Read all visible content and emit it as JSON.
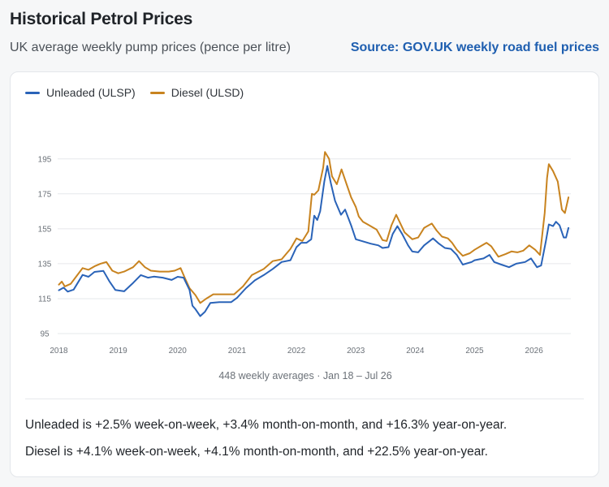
{
  "header": {
    "title": "Historical Petrol Prices",
    "subtitle": "UK average weekly pump prices (pence per litre)",
    "source_link": "Source: GOV.UK weekly road fuel prices"
  },
  "colors": {
    "unleaded": "#2a63b8",
    "diesel": "#c8831f",
    "grid": "#e6e8eb",
    "link": "#1f5fb0"
  },
  "chart_data": {
    "type": "line",
    "x_tick_labels": [
      "2018",
      "2019",
      "2020",
      "2021",
      "2022",
      "2023",
      "2024",
      "2025",
      "2026"
    ],
    "y_tick_labels": [
      "95",
      "115",
      "135",
      "155",
      "175",
      "195"
    ],
    "ylim": [
      95,
      200
    ],
    "xlim": [
      2017.98,
      2026.62
    ],
    "grid": true,
    "legend_position": "top-left",
    "caption": "448 weekly averages · Jan 18 – Jul 26",
    "series": [
      {
        "name": "Unleaded (ULSP)",
        "color": "#2a63b8",
        "points": [
          [
            2018.0,
            119.8
          ],
          [
            2018.08,
            121.3
          ],
          [
            2018.15,
            119.0
          ],
          [
            2018.25,
            120.2
          ],
          [
            2018.4,
            128.6
          ],
          [
            2018.5,
            127.5
          ],
          [
            2018.6,
            130.3
          ],
          [
            2018.75,
            130.9
          ],
          [
            2018.85,
            125.0
          ],
          [
            2018.95,
            120.0
          ],
          [
            2019.1,
            119.2
          ],
          [
            2019.25,
            124.0
          ],
          [
            2019.38,
            128.5
          ],
          [
            2019.5,
            127.0
          ],
          [
            2019.6,
            127.6
          ],
          [
            2019.75,
            127.0
          ],
          [
            2019.9,
            125.7
          ],
          [
            2020.0,
            127.5
          ],
          [
            2020.1,
            127.0
          ],
          [
            2020.2,
            120.0
          ],
          [
            2020.25,
            111.0
          ],
          [
            2020.3,
            109.0
          ],
          [
            2020.38,
            105.0
          ],
          [
            2020.46,
            107.5
          ],
          [
            2020.55,
            112.5
          ],
          [
            2020.7,
            113.0
          ],
          [
            2020.9,
            113.0
          ],
          [
            2021.0,
            115.5
          ],
          [
            2021.15,
            121.0
          ],
          [
            2021.3,
            125.5
          ],
          [
            2021.45,
            128.5
          ],
          [
            2021.6,
            132.0
          ],
          [
            2021.75,
            136.0
          ],
          [
            2021.9,
            137.0
          ],
          [
            2022.0,
            144.5
          ],
          [
            2022.08,
            147.0
          ],
          [
            2022.17,
            147.0
          ],
          [
            2022.25,
            149.0
          ],
          [
            2022.3,
            162.5
          ],
          [
            2022.35,
            160.0
          ],
          [
            2022.4,
            165.0
          ],
          [
            2022.47,
            182.0
          ],
          [
            2022.52,
            191.0
          ],
          [
            2022.58,
            181.0
          ],
          [
            2022.65,
            171.0
          ],
          [
            2022.75,
            163.0
          ],
          [
            2022.82,
            166.0
          ],
          [
            2022.92,
            157.0
          ],
          [
            2023.0,
            149.0
          ],
          [
            2023.1,
            148.0
          ],
          [
            2023.25,
            146.5
          ],
          [
            2023.38,
            145.5
          ],
          [
            2023.45,
            144.0
          ],
          [
            2023.55,
            144.5
          ],
          [
            2023.62,
            152.0
          ],
          [
            2023.7,
            156.5
          ],
          [
            2023.78,
            152.0
          ],
          [
            2023.88,
            145.5
          ],
          [
            2023.95,
            142.0
          ],
          [
            2024.05,
            141.5
          ],
          [
            2024.15,
            145.5
          ],
          [
            2024.3,
            149.5
          ],
          [
            2024.4,
            146.5
          ],
          [
            2024.5,
            144.0
          ],
          [
            2024.6,
            143.5
          ],
          [
            2024.7,
            140.0
          ],
          [
            2024.8,
            134.5
          ],
          [
            2024.95,
            136.0
          ],
          [
            2025.0,
            137.0
          ],
          [
            2025.15,
            138.0
          ],
          [
            2025.25,
            140.0
          ],
          [
            2025.33,
            136.0
          ],
          [
            2025.45,
            134.5
          ],
          [
            2025.58,
            133.0
          ],
          [
            2025.7,
            135.0
          ],
          [
            2025.85,
            136.0
          ],
          [
            2025.95,
            138.0
          ],
          [
            2026.05,
            133.0
          ],
          [
            2026.12,
            134.0
          ],
          [
            2026.2,
            148.0
          ],
          [
            2026.25,
            157.5
          ],
          [
            2026.32,
            156.5
          ],
          [
            2026.37,
            159.0
          ],
          [
            2026.43,
            157.0
          ],
          [
            2026.5,
            150.0
          ],
          [
            2026.54,
            150.0
          ],
          [
            2026.58,
            155.5
          ]
        ]
      },
      {
        "name": "Diesel (ULSD)",
        "color": "#c8831f",
        "points": [
          [
            2018.0,
            123.0
          ],
          [
            2018.05,
            124.8
          ],
          [
            2018.1,
            122.0
          ],
          [
            2018.2,
            123.5
          ],
          [
            2018.3,
            128.0
          ],
          [
            2018.4,
            132.5
          ],
          [
            2018.5,
            131.5
          ],
          [
            2018.6,
            133.5
          ],
          [
            2018.7,
            135.0
          ],
          [
            2018.8,
            136.0
          ],
          [
            2018.9,
            131.0
          ],
          [
            2019.0,
            129.5
          ],
          [
            2019.1,
            130.5
          ],
          [
            2019.25,
            133.0
          ],
          [
            2019.35,
            136.5
          ],
          [
            2019.45,
            133.0
          ],
          [
            2019.55,
            131.0
          ],
          [
            2019.7,
            130.5
          ],
          [
            2019.85,
            130.5
          ],
          [
            2019.95,
            131.0
          ],
          [
            2020.05,
            132.5
          ],
          [
            2020.12,
            127.0
          ],
          [
            2020.2,
            121.0
          ],
          [
            2020.3,
            117.0
          ],
          [
            2020.38,
            112.5
          ],
          [
            2020.48,
            115.0
          ],
          [
            2020.6,
            117.5
          ],
          [
            2020.8,
            117.5
          ],
          [
            2020.95,
            117.5
          ],
          [
            2021.1,
            122.0
          ],
          [
            2021.25,
            128.5
          ],
          [
            2021.45,
            132.0
          ],
          [
            2021.6,
            136.5
          ],
          [
            2021.75,
            137.5
          ],
          [
            2021.9,
            143.5
          ],
          [
            2022.0,
            149.5
          ],
          [
            2022.1,
            148.0
          ],
          [
            2022.2,
            153.5
          ],
          [
            2022.26,
            175.0
          ],
          [
            2022.3,
            174.5
          ],
          [
            2022.37,
            177.0
          ],
          [
            2022.45,
            190.0
          ],
          [
            2022.48,
            199.0
          ],
          [
            2022.55,
            195.0
          ],
          [
            2022.6,
            185.0
          ],
          [
            2022.68,
            180.5
          ],
          [
            2022.76,
            189.0
          ],
          [
            2022.85,
            180.0
          ],
          [
            2022.92,
            173.0
          ],
          [
            2023.0,
            167.5
          ],
          [
            2023.05,
            162.0
          ],
          [
            2023.12,
            159.0
          ],
          [
            2023.2,
            157.5
          ],
          [
            2023.35,
            154.5
          ],
          [
            2023.45,
            148.5
          ],
          [
            2023.52,
            148.0
          ],
          [
            2023.6,
            157.0
          ],
          [
            2023.68,
            163.0
          ],
          [
            2023.75,
            158.0
          ],
          [
            2023.82,
            153.0
          ],
          [
            2023.95,
            149.0
          ],
          [
            2024.05,
            150.0
          ],
          [
            2024.15,
            155.5
          ],
          [
            2024.28,
            158.0
          ],
          [
            2024.36,
            154.0
          ],
          [
            2024.45,
            150.5
          ],
          [
            2024.55,
            149.5
          ],
          [
            2024.62,
            147.0
          ],
          [
            2024.7,
            143.0
          ],
          [
            2024.8,
            139.5
          ],
          [
            2024.92,
            141.0
          ],
          [
            2025.0,
            143.0
          ],
          [
            2025.1,
            145.0
          ],
          [
            2025.2,
            147.0
          ],
          [
            2025.28,
            145.0
          ],
          [
            2025.4,
            139.0
          ],
          [
            2025.52,
            140.5
          ],
          [
            2025.62,
            142.0
          ],
          [
            2025.72,
            141.5
          ],
          [
            2025.82,
            142.5
          ],
          [
            2025.92,
            145.5
          ],
          [
            2026.02,
            143.0
          ],
          [
            2026.1,
            140.0
          ],
          [
            2026.18,
            164.0
          ],
          [
            2026.22,
            184.0
          ],
          [
            2026.25,
            192.0
          ],
          [
            2026.32,
            188.0
          ],
          [
            2026.4,
            182.0
          ],
          [
            2026.47,
            166.0
          ],
          [
            2026.52,
            164.0
          ],
          [
            2026.58,
            173.0
          ]
        ]
      }
    ]
  },
  "summary": {
    "unleaded": "Unleaded is +2.5% week-on-week, +3.4% month-on-month, and +16.3% year-on-year.",
    "diesel": "Diesel is +4.1% week-on-week, +4.1% month-on-month, and +22.5% year-on-year."
  }
}
